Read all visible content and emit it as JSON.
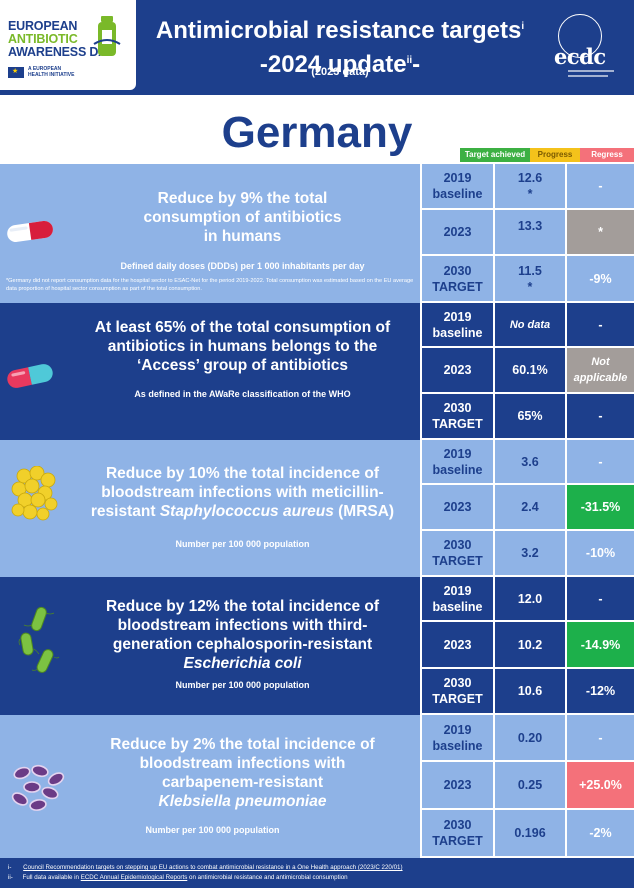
{
  "header": {
    "logo_lines": [
      "EUROPEAN",
      "ANTIBIOTIC",
      "AWARENESS DAY"
    ],
    "logo_sub": [
      "A EUROPEAN",
      "HEALTH INITIATIVE"
    ],
    "title_line1": "Antimicrobial resistance targets",
    "title_sup1": "i",
    "title_line2": "-2024 update",
    "title_sup2": "ii",
    "title_line2_end": "-",
    "subtitle": "(2023 data)",
    "ecdc_text": "ecdc"
  },
  "country": "Germany",
  "legend": {
    "achieved": "Target achieved",
    "progress": "Progress",
    "regress": "Regress"
  },
  "colors": {
    "navy": "#1d3f8c",
    "light_blue": "#8fb3e6",
    "green": "#1db04b",
    "red": "#f4717a",
    "grey": "#a39d9a",
    "yellow": "#f4c21b"
  },
  "sections": [
    {
      "icon": "pill-icon",
      "title": [
        "Reduce by 9% the total",
        "consumption of antibiotics",
        "in humans"
      ],
      "sub": "Defined daily doses (DDDs) per 1 000 inhabitants per day",
      "note": "*Germany did not report consumption data for the hospital sector to ESAC-Net for the period 2019-2022. Total consumption was estimated based on the EU average data proportion of hospital sector consumption as part of the total consumption.",
      "rows": [
        {
          "year": [
            "2019",
            "baseline"
          ],
          "value": [
            "12.6",
            "*"
          ],
          "change": "-"
        },
        {
          "year": [
            "2023"
          ],
          "value": [
            "13.3"
          ],
          "change": "*"
        },
        {
          "year": [
            "2030",
            "TARGET"
          ],
          "value": [
            "11.5",
            "*"
          ],
          "change": "-9%"
        }
      ]
    },
    {
      "icon": "capsule-icon",
      "title": [
        "At least 65% of the total consumption of",
        "antibiotics in humans belongs to the",
        "‘Access’ group of antibiotics"
      ],
      "sub": "As defined in the AWaRe classification of the WHO",
      "rows": [
        {
          "year": [
            "2019",
            "baseline"
          ],
          "value": [
            "No data"
          ],
          "change": "-"
        },
        {
          "year": [
            "2023"
          ],
          "value": [
            "60.1%"
          ],
          "change": "Not applicable"
        },
        {
          "year": [
            "2030",
            "TARGET"
          ],
          "value": [
            "65%"
          ],
          "change": "-"
        }
      ]
    },
    {
      "icon": "staphylococcus-icon",
      "title": [
        "Reduce by 10% the total incidence of",
        "bloodstream infections with meticillin-",
        "resistant Staphylococcus aureus (MRSA)"
      ],
      "sub": "Number per 100 000 population",
      "rows": [
        {
          "year": [
            "2019",
            "baseline"
          ],
          "value": [
            "3.6"
          ],
          "change": "-"
        },
        {
          "year": [
            "2023"
          ],
          "value": [
            "2.4"
          ],
          "change": "-31.5%"
        },
        {
          "year": [
            "2030",
            "TARGET"
          ],
          "value": [
            "3.2"
          ],
          "change": "-10%"
        }
      ]
    },
    {
      "icon": "ecoli-icon",
      "title": [
        "Reduce by 12% the total incidence of",
        "bloodstream infections with third-",
        "generation cephalosporin-resistant",
        "Escherichia coli"
      ],
      "sub": "Number per 100 000 population",
      "rows": [
        {
          "year": [
            "2019",
            "baseline"
          ],
          "value": [
            "12.0"
          ],
          "change": "-"
        },
        {
          "year": [
            "2023"
          ],
          "value": [
            "10.2"
          ],
          "change": "-14.9%"
        },
        {
          "year": [
            "2030",
            "TARGET"
          ],
          "value": [
            "10.6"
          ],
          "change": "-12%"
        }
      ]
    },
    {
      "icon": "klebsiella-icon",
      "title": [
        "Reduce by 2% the total incidence of",
        "bloodstream infections with",
        "carbapenem-resistant",
        "Klebsiella pneumoniae"
      ],
      "sub": "Number per 100 000 population",
      "rows": [
        {
          "year": [
            "2019",
            "baseline"
          ],
          "value": [
            "0.20"
          ],
          "change": "-"
        },
        {
          "year": [
            "2023"
          ],
          "value": [
            "0.25"
          ],
          "change": "+25.0%"
        },
        {
          "year": [
            "2030",
            "TARGET"
          ],
          "value": [
            "0.196"
          ],
          "change": "-2%"
        }
      ]
    }
  ],
  "footer": {
    "fn1_marker": "i-",
    "fn1_link": "Council Recommendation targets on stepping up EU actions to combat antimicrobial resistance in a One Health approach (2023/C 220/01)",
    "fn2_marker": "ii-",
    "fn2_pre": "Full data available in ",
    "fn2_link": "ECDC Annual Epidemiological Reports",
    "fn2_post": " on antimicrobial resistance and antimicrobial consumption"
  }
}
